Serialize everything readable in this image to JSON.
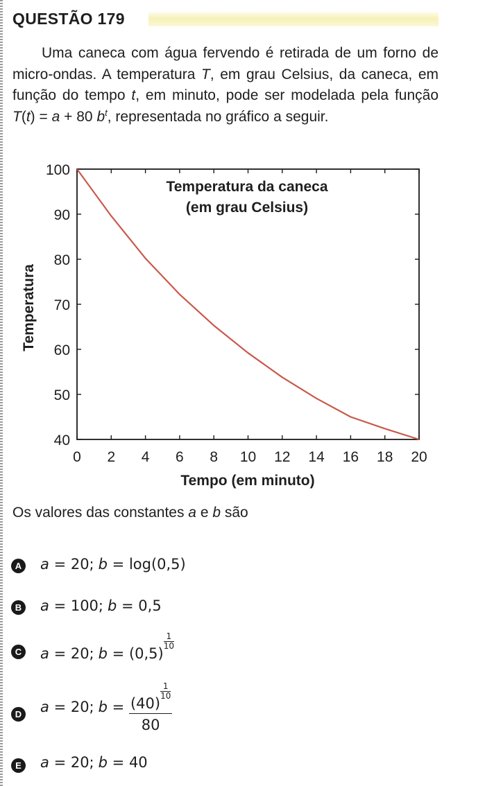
{
  "question": {
    "title": "QUESTÃO 179",
    "statement": {
      "indent_text": "Uma caneca com água fervendo é retirada de um forno de micro-ondas. A temperatura ",
      "var_T": "T",
      "text_2": ", em grau Celsius, da caneca, em função do tempo ",
      "var_t": "t",
      "text_3": ", em minuto, pode ser modelada pela função ",
      "func_T": "T",
      "func_open": "(",
      "func_t": "t",
      "func_close": ") = ",
      "func_a": "a",
      "func_plus": " + 80 ",
      "func_b": "b",
      "func_exp": "t",
      "text_4": ", representada no gráfico a seguir."
    },
    "prompt": {
      "text_1": "Os valores das constantes ",
      "var_a": "a",
      "text_2": " e ",
      "var_b": "b",
      "text_3": " são"
    },
    "options": [
      {
        "letter": "A",
        "a_part": "= 20;",
        "b_part": "= log(0,5)"
      },
      {
        "letter": "B",
        "a_part": "= 100;",
        "b_part": "= 0,5"
      },
      {
        "letter": "C",
        "a_part": "= 20;",
        "b_part": "= (0,5)",
        "exp_num": "1",
        "exp_den": "10"
      },
      {
        "letter": "D",
        "a_part": "= 20;",
        "b_eq": "=",
        "frac_base": "(40)",
        "exp_num": "1",
        "exp_den": "10",
        "frac_den": "80"
      },
      {
        "letter": "E",
        "a_part": "= 20;",
        "b_part": "= 40"
      }
    ],
    "var_a_symbol": "a",
    "var_b_symbol": "b"
  },
  "chart_data": {
    "type": "line",
    "title": "Temperatura da caneca",
    "subtitle": "(em grau Celsius)",
    "xlabel": "Tempo (em minuto)",
    "ylabel": "Temperatura",
    "xlim": [
      0,
      20
    ],
    "ylim": [
      40,
      100
    ],
    "xticks": [
      0,
      2,
      4,
      6,
      8,
      10,
      12,
      14,
      16,
      18,
      20
    ],
    "yticks": [
      40,
      50,
      60,
      70,
      80,
      90,
      100
    ],
    "grid": false,
    "line_color": "#c8594a",
    "series": [
      {
        "x": [
          0,
          2,
          4,
          6,
          8,
          10,
          12,
          14,
          16,
          18,
          20
        ],
        "y": [
          100,
          89.6,
          80.2,
          72.2,
          65.3,
          59.2,
          53.8,
          49.1,
          45.0,
          42.4,
          40
        ]
      }
    ]
  }
}
